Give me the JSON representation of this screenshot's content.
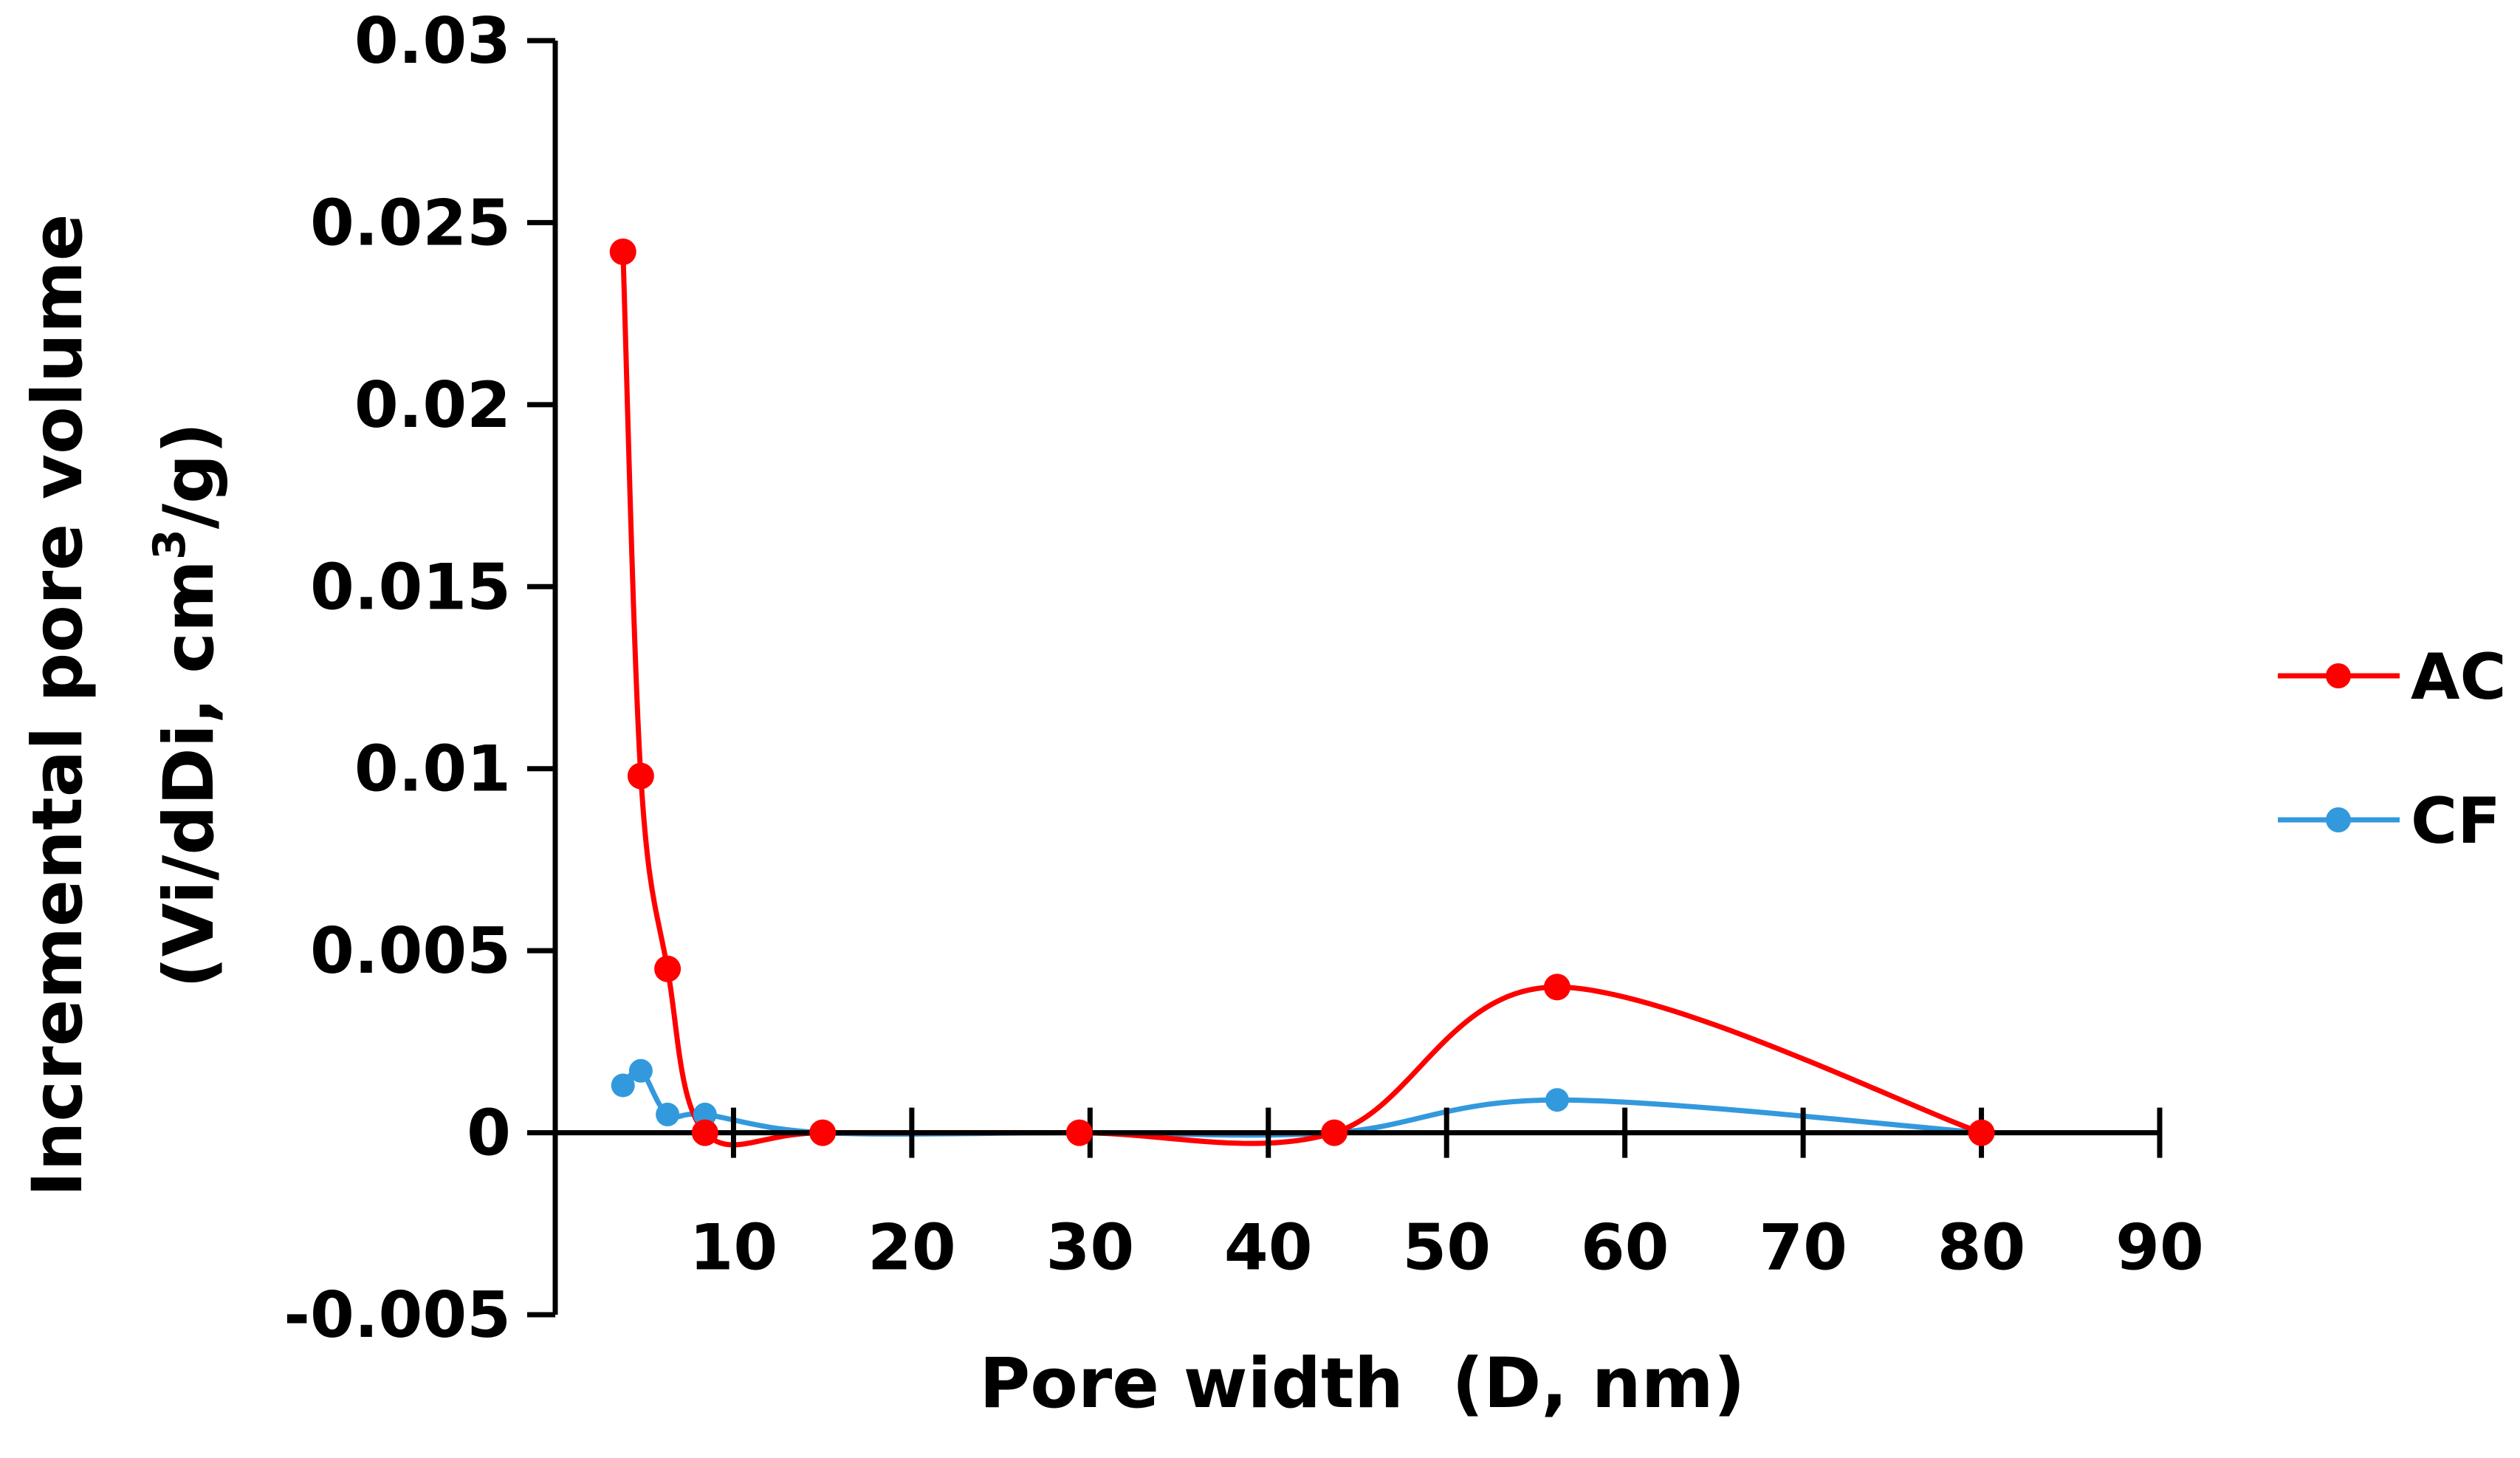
{
  "chart_data": {
    "type": "line",
    "title": "",
    "xlabel": "Pore width  (D, nm)",
    "ylabel_line1": "Incremental pore volume",
    "ylabel_line2_prefix": "(Vi/dDi, cm",
    "ylabel_line2_sup": "3",
    "ylabel_line2_suffix": "/g)",
    "xlim": [
      0,
      90
    ],
    "ylim": [
      -0.005,
      0.03
    ],
    "x_ticks": [
      10,
      20,
      30,
      40,
      50,
      60,
      70,
      80,
      90
    ],
    "x_tick_labels": [
      "10",
      "20",
      "30",
      "40",
      "50",
      "60",
      "70",
      "80",
      "90"
    ],
    "y_ticks": [
      -0.005,
      0,
      0.005,
      0.01,
      0.015,
      0.02,
      0.025,
      0.03
    ],
    "y_tick_labels": [
      "-0.005",
      "0",
      "0.005",
      "0.01",
      "0.015",
      "0.02",
      "0.025",
      "0.03"
    ],
    "grid": false,
    "legend_position": "right",
    "smooth": true,
    "series": [
      {
        "name": "AC",
        "color": "#ff0000",
        "x": [
          3.8,
          4.8,
          6.3,
          8.4,
          15.0,
          29.4,
          43.7,
          56.2,
          80.0
        ],
        "y": [
          0.0242,
          0.0098,
          0.0045,
          0.0,
          0.0,
          0.0,
          0.0,
          0.004,
          0.0
        ]
      },
      {
        "name": "CF",
        "color": "#3399dd",
        "x": [
          3.8,
          4.8,
          6.3,
          8.4,
          15.0,
          29.4,
          43.7,
          56.2,
          80.0
        ],
        "y": [
          0.0013,
          0.0017,
          0.0005,
          0.0005,
          0.0,
          0.0,
          0.0,
          0.0009,
          0.0
        ]
      }
    ]
  }
}
